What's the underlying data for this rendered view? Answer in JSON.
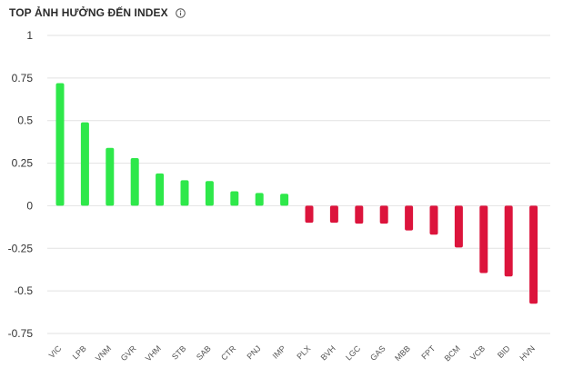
{
  "header": {
    "title": "TOP ẢNH HƯỞNG ĐẾN INDEX",
    "info_icon": "info-circle-icon"
  },
  "colors": {
    "positive": "#2ee84a",
    "negative": "#dc143c",
    "grid": "#e2e2e2",
    "text": "#2b2b2b"
  },
  "chart_data": {
    "type": "bar",
    "title": "TOP ẢNH HƯỞNG ĐẾN INDEX",
    "xlabel": "",
    "ylabel": "",
    "ylim": [
      -0.75,
      1
    ],
    "yticks": [
      1,
      0.75,
      0.5,
      0.25,
      0,
      -0.25,
      -0.5,
      -0.75
    ],
    "ytick_labels": [
      "1",
      "0.75",
      "0.5",
      "0.25",
      "0",
      "-0.25",
      "-0.5",
      "-0.75"
    ],
    "grid": true,
    "legend": "none",
    "categories": [
      "VIC",
      "LPB",
      "VNM",
      "GVR",
      "VHM",
      "STB",
      "SAB",
      "CTR",
      "PNJ",
      "IMP",
      "PLX",
      "BVH",
      "LGC",
      "GAS",
      "MBB",
      "FPT",
      "BCM",
      "VCB",
      "BID",
      "HVN"
    ],
    "values": [
      0.72,
      0.49,
      0.34,
      0.28,
      0.19,
      0.15,
      0.145,
      0.085,
      0.075,
      0.07,
      -0.1,
      -0.1,
      -0.105,
      -0.105,
      -0.145,
      -0.17,
      -0.245,
      -0.395,
      -0.415,
      -0.575
    ]
  }
}
